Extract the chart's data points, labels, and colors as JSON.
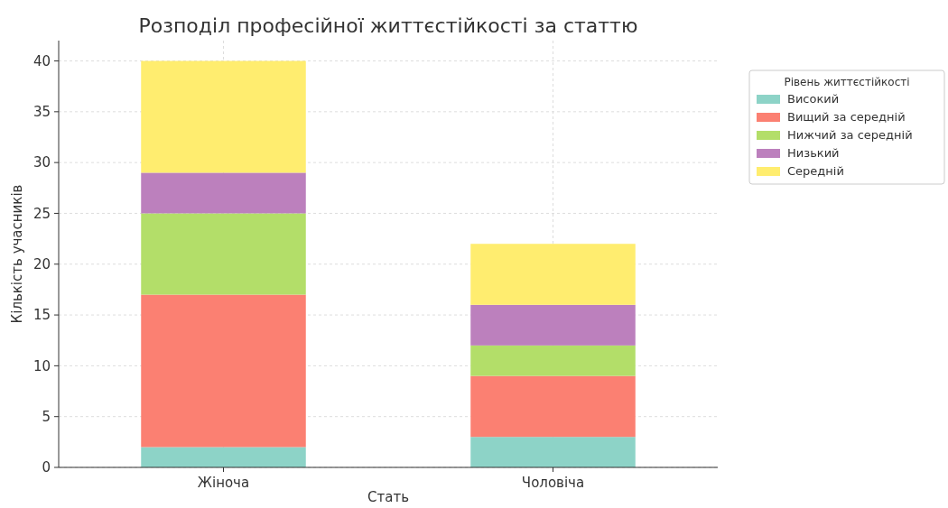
{
  "chart_data": {
    "type": "bar",
    "title": "Розподіл професійної життєстійкості за статтю",
    "xlabel": "Стать",
    "ylabel": "Кількість учасників",
    "legend_title": "Рівень життєстійкості",
    "categories": [
      "Жіноча",
      "Чоловіча"
    ],
    "series": [
      {
        "name": "Високий",
        "color": "#8dd3c7",
        "values": [
          2,
          3
        ]
      },
      {
        "name": "Вищий за середній",
        "color": "#fb8072",
        "values": [
          15,
          6
        ]
      },
      {
        "name": "Нижчий за середній",
        "color": "#b3de69",
        "values": [
          8,
          3
        ]
      },
      {
        "name": "Низький",
        "color": "#bc80bd",
        "values": [
          4,
          4
        ]
      },
      {
        "name": "Середній",
        "color": "#ffed6f",
        "values": [
          11,
          6
        ]
      }
    ],
    "stacked": true,
    "ylim": [
      0,
      42
    ],
    "yticks": [
      0,
      5,
      10,
      15,
      20,
      25,
      30,
      35,
      40
    ],
    "grid": true,
    "legend": "top right"
  }
}
